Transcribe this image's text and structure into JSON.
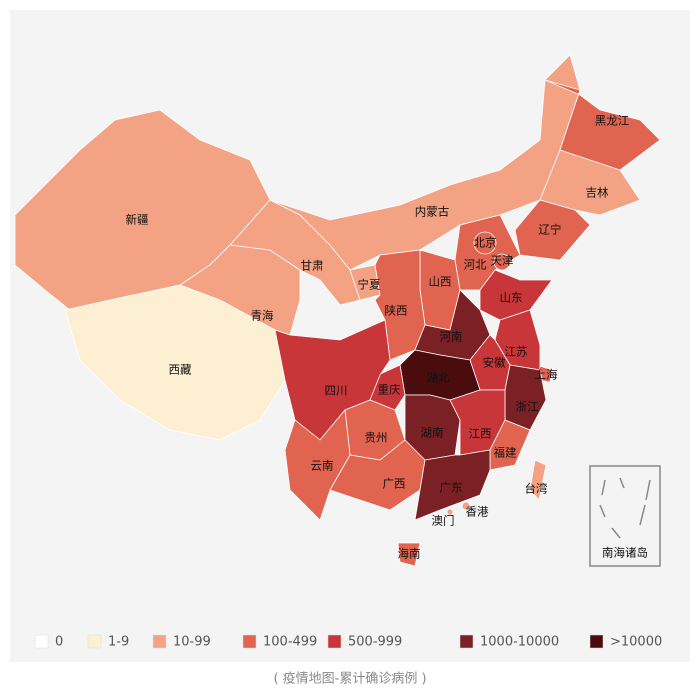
{
  "legend": {
    "items": [
      {
        "label": "0",
        "color": "#ffffff"
      },
      {
        "label": "1-9",
        "color": "#fcefd2"
      },
      {
        "label": "10-99",
        "color": "#f3a283"
      },
      {
        "label": "100-499",
        "color": "#e0644f"
      },
      {
        "label": "500-999",
        "color": "#c8363a"
      },
      {
        "label": "1000-10000",
        "color": "#7b2025"
      },
      {
        "label": ">10000",
        "color": "#4b0c0e"
      }
    ]
  },
  "provinces": [
    {
      "name": "新疆",
      "bin": 2
    },
    {
      "name": "西藏",
      "bin": 1
    },
    {
      "name": "青海",
      "bin": 2
    },
    {
      "name": "甘肃",
      "bin": 2
    },
    {
      "name": "内蒙古",
      "bin": 2
    },
    {
      "name": "宁夏",
      "bin": 2
    },
    {
      "name": "黑龙江",
      "bin": 3
    },
    {
      "name": "吉林",
      "bin": 2
    },
    {
      "name": "辽宁",
      "bin": 3
    },
    {
      "name": "河北",
      "bin": 3
    },
    {
      "name": "北京",
      "bin": 3
    },
    {
      "name": "天津",
      "bin": 3
    },
    {
      "name": "山西",
      "bin": 3
    },
    {
      "name": "陕西",
      "bin": 3
    },
    {
      "name": "山东",
      "bin": 4
    },
    {
      "name": "河南",
      "bin": 5
    },
    {
      "name": "江苏",
      "bin": 4
    },
    {
      "name": "安徽",
      "bin": 4
    },
    {
      "name": "上海",
      "bin": 3
    },
    {
      "name": "浙江",
      "bin": 5
    },
    {
      "name": "湖北",
      "bin": 6
    },
    {
      "name": "重庆",
      "bin": 4
    },
    {
      "name": "四川",
      "bin": 4
    },
    {
      "name": "贵州",
      "bin": 3
    },
    {
      "name": "云南",
      "bin": 3
    },
    {
      "name": "湖南",
      "bin": 5
    },
    {
      "name": "江西",
      "bin": 4
    },
    {
      "name": "福建",
      "bin": 3
    },
    {
      "name": "广西",
      "bin": 3
    },
    {
      "name": "广东",
      "bin": 5
    },
    {
      "name": "海南",
      "bin": 3
    },
    {
      "name": "台湾",
      "bin": 2
    },
    {
      "name": "香港",
      "bin": 2
    },
    {
      "name": "澳门",
      "bin": 2
    }
  ],
  "inset_label": "南海诸岛",
  "caption": "( 疫情地图-累计确诊病例 )"
}
